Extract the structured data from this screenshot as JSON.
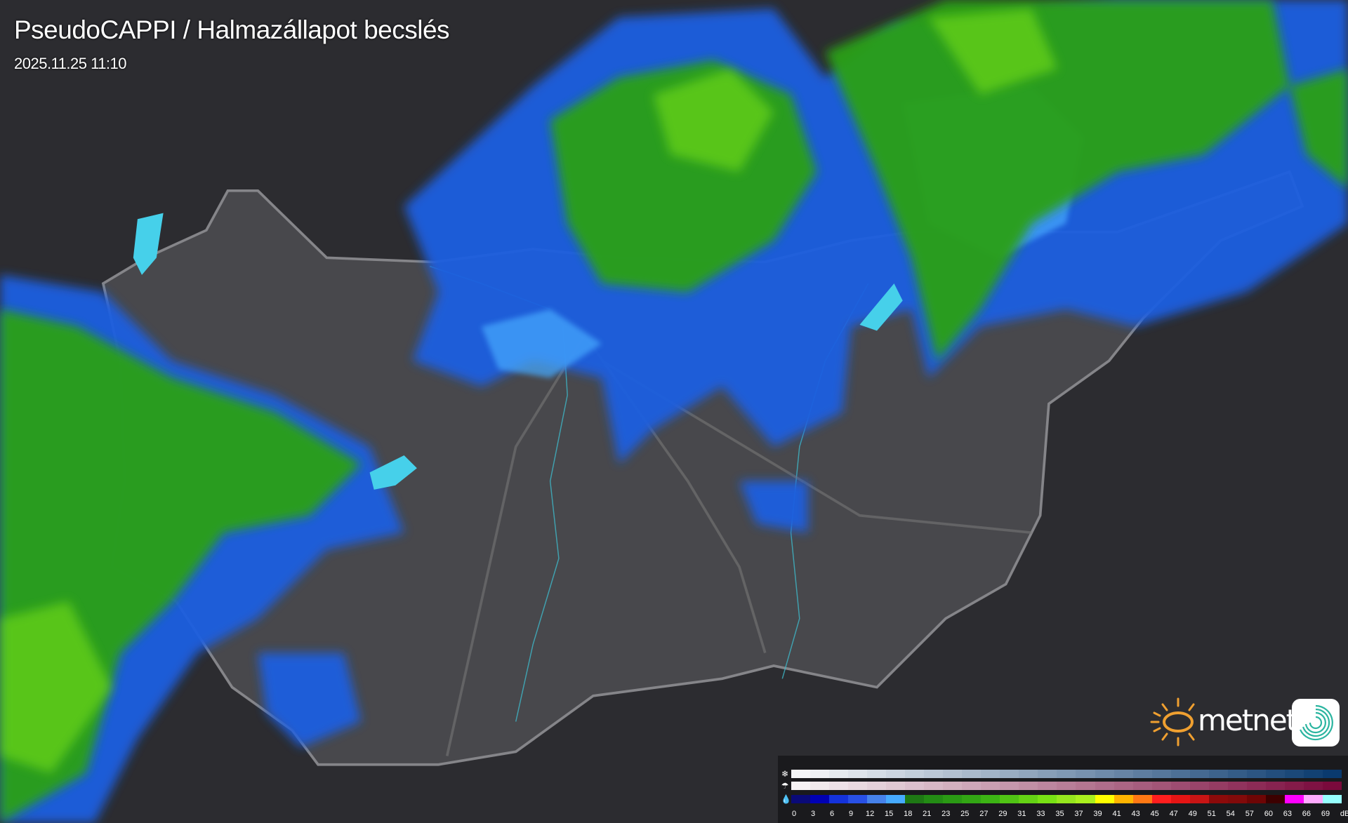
{
  "header": {
    "title": "PseudoCAPPI  / Halmazállapot becslés",
    "timestamp": "2025.11.25 11:10"
  },
  "brand": {
    "name": "metnet",
    "sun_color": "#f0a030",
    "icon_color": "#2bb5a0"
  },
  "legend": {
    "unit": "dBZ",
    "rows": [
      {
        "icon": "snowflake-icon",
        "glyph": "❄",
        "phase": "snow"
      },
      {
        "icon": "mixed-precip-icon",
        "glyph": "☂",
        "phase": "mixed"
      },
      {
        "icon": "raindrop-icon",
        "glyph": "💧",
        "phase": "rain"
      }
    ],
    "ticks": [
      "0",
      "3",
      "6",
      "9",
      "12",
      "15",
      "18",
      "21",
      "23",
      "25",
      "27",
      "29",
      "31",
      "33",
      "35",
      "37",
      "39",
      "41",
      "43",
      "45",
      "47",
      "49",
      "51",
      "54",
      "57",
      "60",
      "63",
      "66",
      "69"
    ],
    "rain_colors": [
      "#0a0a78",
      "#0000b4",
      "#1432dc",
      "#2850e6",
      "#4682eb",
      "#46aaff",
      "#1e7814",
      "#238c14",
      "#2a9a14",
      "#32a614",
      "#3cb414",
      "#50c414",
      "#64d214",
      "#78e114",
      "#96e61e",
      "#aaf01e",
      "#ffff00",
      "#ffb400",
      "#ff7814",
      "#ff1e1e",
      "#e61414",
      "#c81414",
      "#8c0a0a",
      "#820a0a",
      "#6e0505",
      "#3c0000",
      "#ff00ff",
      "#ffaaff",
      "#96ffff"
    ],
    "snow_from": "#f6f7f9",
    "snow_to": "#0a3a6e",
    "mixed_from": "#f6f2f4",
    "mixed_to": "#7a0a3c"
  }
}
